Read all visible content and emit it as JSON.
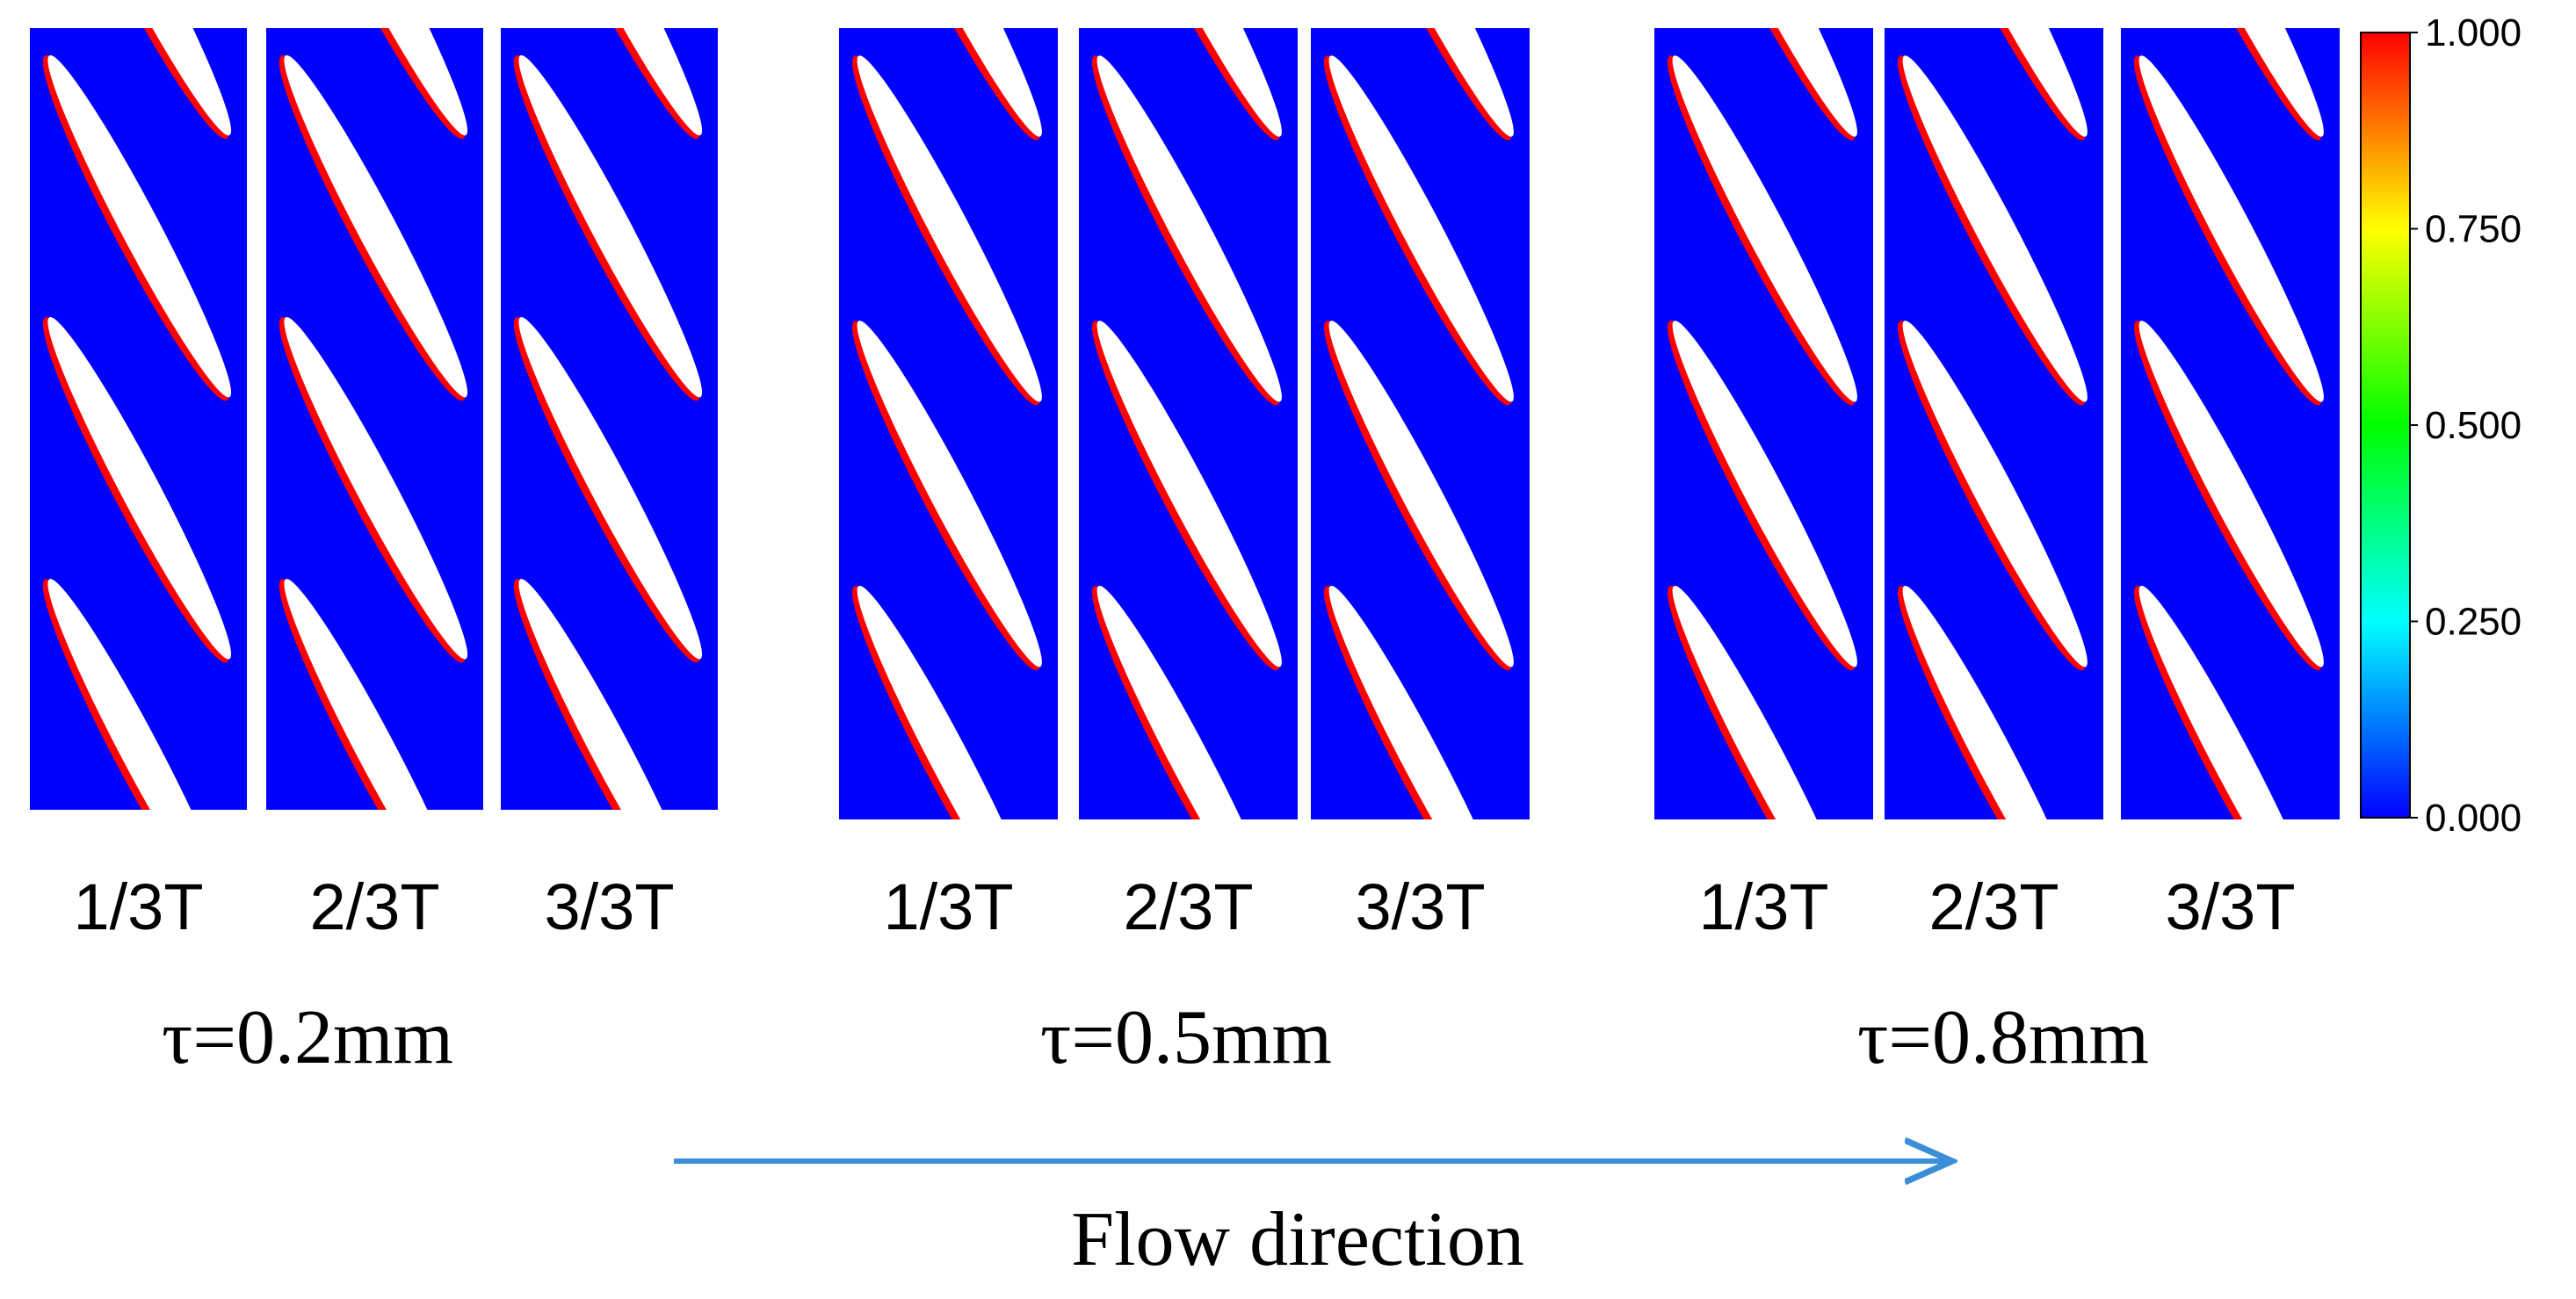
{
  "groups": [
    {
      "label": "τ=0.2mm",
      "panels": [
        "1/3T",
        "2/3T",
        "3/3T"
      ]
    },
    {
      "label": "τ=0.5mm",
      "panels": [
        "1/3T",
        "2/3T",
        "3/3T"
      ]
    },
    {
      "label": "τ=0.8mm",
      "panels": [
        "1/3T",
        "2/3T",
        "3/3T"
      ]
    }
  ],
  "colorbar": {
    "ticks": [
      "1.000",
      "0.750",
      "0.500",
      "0.250",
      "0.000"
    ]
  },
  "caption": "Flow direction"
}
